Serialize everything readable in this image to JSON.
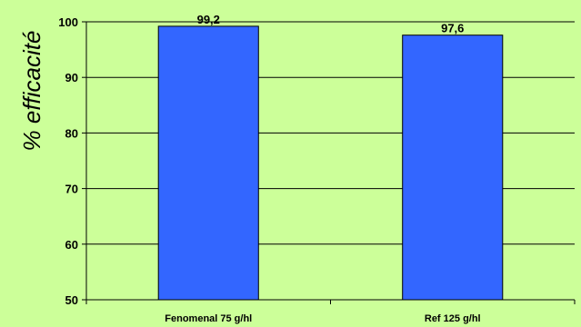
{
  "chart_data": {
    "type": "bar",
    "title": "",
    "xlabel": "",
    "ylabel": "% efficacité",
    "categories": [
      "Fenomenal 75 g/hl",
      "Ref 125 g/hl"
    ],
    "values": [
      99.2,
      97.6
    ],
    "data_labels": [
      "99,2",
      "97,6"
    ],
    "ylim": [
      50,
      100
    ],
    "yticks": [
      50,
      60,
      70,
      80,
      90,
      100
    ],
    "grid": true,
    "legend": "none",
    "colors": {
      "background": "#ccff99",
      "plot_area": "#ccff99",
      "bar": "#3366ff",
      "bar_border": "#000000",
      "grid": "#000000"
    }
  }
}
